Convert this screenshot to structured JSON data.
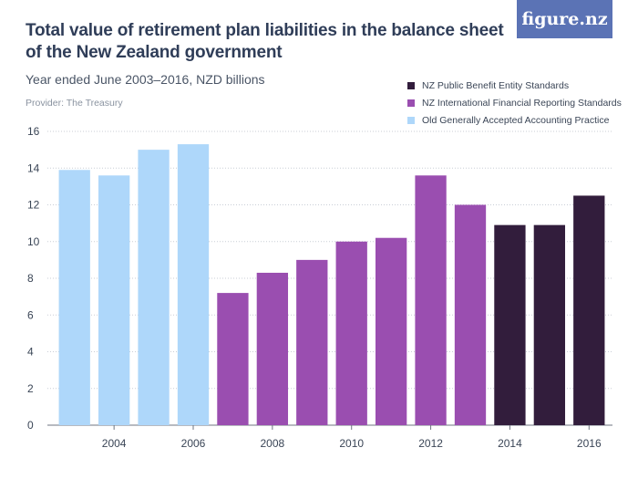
{
  "header": {
    "title": "Total value of retirement plan liabilities in the balance sheet of the New Zealand government",
    "subtitle": "Year ended June 2003–2016, NZD billions",
    "provider": "Provider: The Treasury",
    "logo": "figure.nz"
  },
  "chart_data": {
    "type": "bar",
    "title": "Total value of retirement plan liabilities in the balance sheet of the New Zealand government",
    "subtitle": "Year ended June 2003–2016, NZD billions",
    "xlabel": "",
    "ylabel": "",
    "categories": [
      "2003",
      "2004",
      "2005",
      "2006",
      "2007",
      "2008",
      "2009",
      "2010",
      "2011",
      "2012",
      "2013",
      "2014",
      "2015",
      "2016"
    ],
    "values": [
      13.9,
      13.6,
      15.0,
      15.3,
      7.2,
      8.3,
      9.0,
      10.0,
      10.2,
      13.6,
      12.0,
      10.9,
      10.9,
      12.5
    ],
    "standard_index": [
      2,
      2,
      2,
      2,
      1,
      1,
      1,
      1,
      1,
      1,
      1,
      0,
      0,
      0
    ],
    "series": [
      {
        "name": "NZ Public Benefit Entity Standards",
        "color": "#321d3c"
      },
      {
        "name": "NZ International Financial Reporting Standards",
        "color": "#9a4eb0"
      },
      {
        "name": "Old Generally Accepted Accounting Practice",
        "color": "#aed7fa"
      }
    ],
    "ylim": [
      0,
      16
    ],
    "yticks": [
      "0",
      "2",
      "4",
      "6",
      "8",
      "10",
      "12",
      "14",
      "16"
    ],
    "xtick_labels": [
      "2004",
      "2006",
      "2008",
      "2010",
      "2012",
      "2014",
      "2016"
    ],
    "grid": true,
    "legend_position": "top-right"
  }
}
